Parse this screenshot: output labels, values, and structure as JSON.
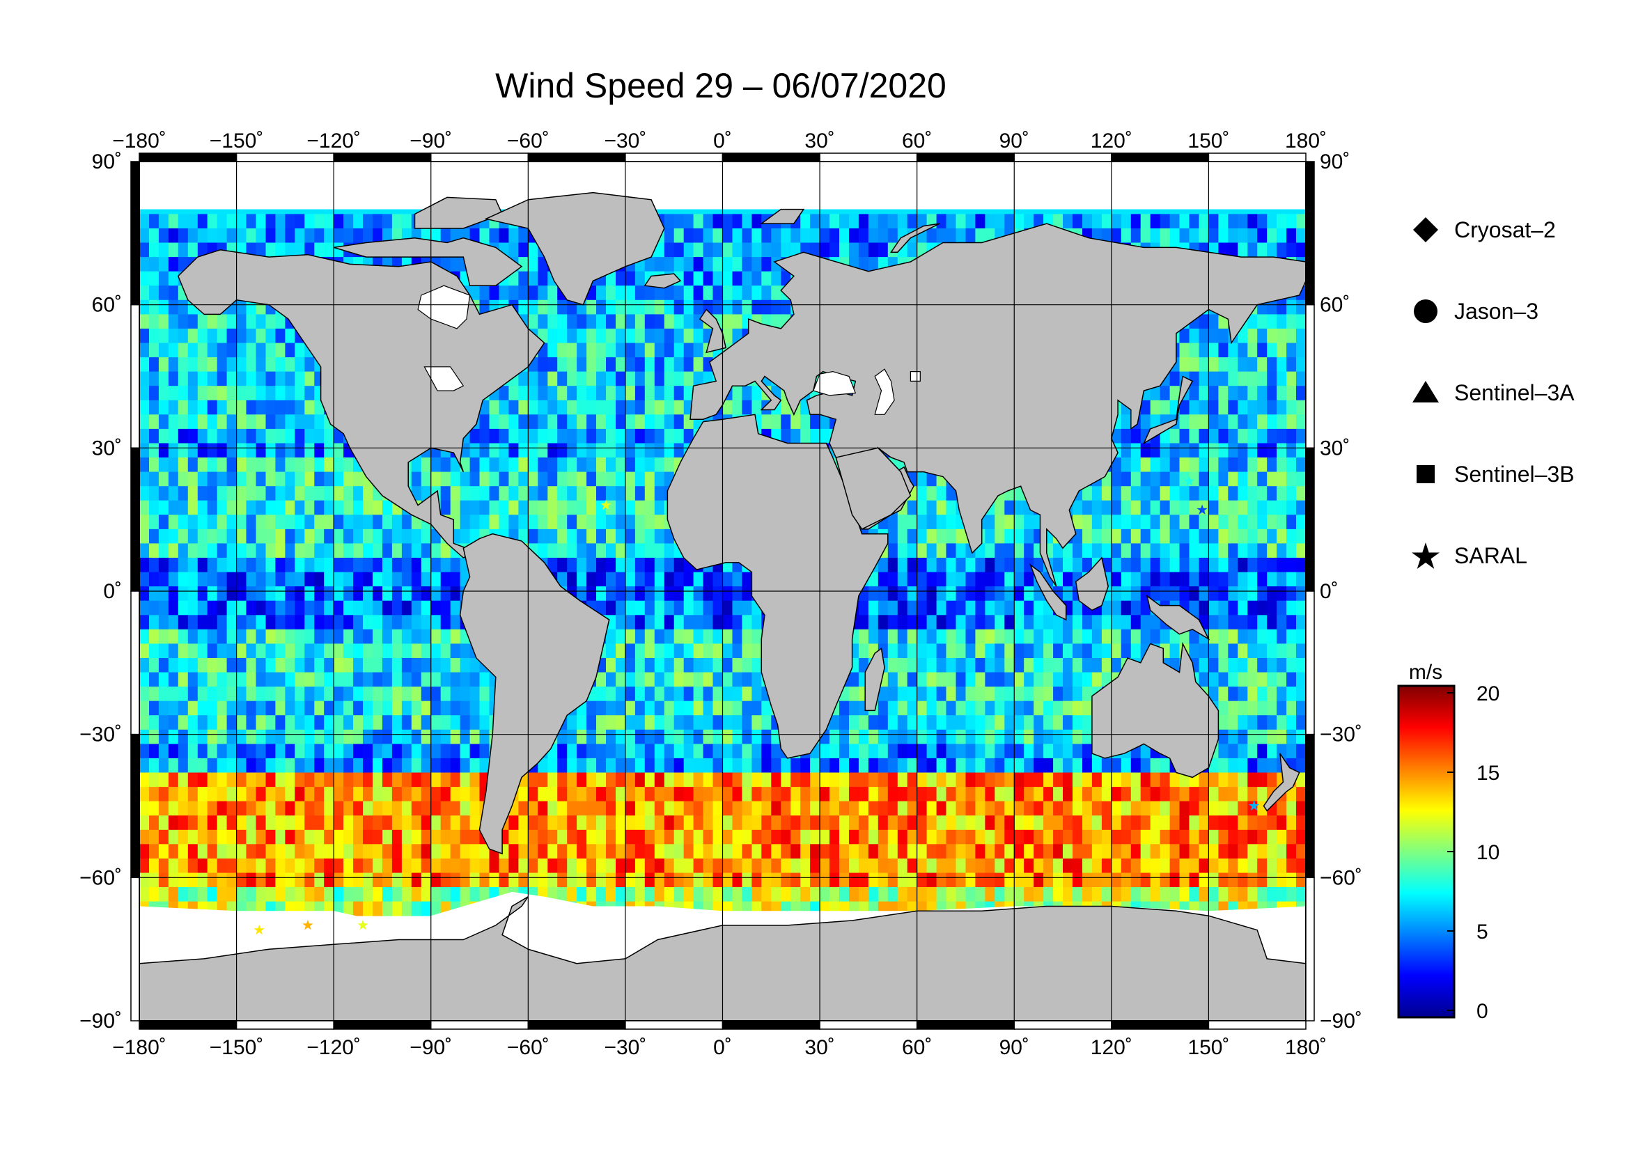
{
  "title": "Wind Speed 29 – 06/07/2020",
  "axes": {
    "lon_ticks": [
      {
        "value": -180,
        "label": "−180˚"
      },
      {
        "value": -150,
        "label": "−150˚"
      },
      {
        "value": -120,
        "label": "−120˚"
      },
      {
        "value": -90,
        "label": "−90˚"
      },
      {
        "value": -60,
        "label": "−60˚"
      },
      {
        "value": -30,
        "label": "−30˚"
      },
      {
        "value": 0,
        "label": "0˚"
      },
      {
        "value": 30,
        "label": "30˚"
      },
      {
        "value": 60,
        "label": "60˚"
      },
      {
        "value": 90,
        "label": "90˚"
      },
      {
        "value": 120,
        "label": "120˚"
      },
      {
        "value": 150,
        "label": "150˚"
      },
      {
        "value": 180,
        "label": "180˚"
      }
    ],
    "lat_ticks": [
      {
        "value": 90,
        "label": "90˚"
      },
      {
        "value": 60,
        "label": "60˚"
      },
      {
        "value": 30,
        "label": "30˚"
      },
      {
        "value": 0,
        "label": "0˚"
      },
      {
        "value": -30,
        "label": "−30˚"
      },
      {
        "value": -60,
        "label": "−60˚"
      },
      {
        "value": -90,
        "label": "−90˚"
      }
    ]
  },
  "legend": [
    {
      "label": "Cryosat–2",
      "symbol": "diamond"
    },
    {
      "label": "Jason–3",
      "symbol": "circle"
    },
    {
      "label": "Sentinel–3A",
      "symbol": "triangle"
    },
    {
      "label": "Sentinel–3B",
      "symbol": "square"
    },
    {
      "label": "SARAL",
      "symbol": "star"
    }
  ],
  "colorbar": {
    "unit": "m/s",
    "min": 0,
    "max": 20,
    "ticks": [
      {
        "value": 20,
        "label": "20"
      },
      {
        "value": 15,
        "label": "15"
      },
      {
        "value": 10,
        "label": "10"
      },
      {
        "value": 5,
        "label": "5"
      },
      {
        "value": 0,
        "label": "0"
      }
    ],
    "colors": [
      "#00008f",
      "#0000ff",
      "#0080ff",
      "#00ffff",
      "#80ff80",
      "#ffff00",
      "#ff8000",
      "#ff0000",
      "#800000"
    ]
  },
  "colors": {
    "land": "#bebebe",
    "ice": "#ffffff",
    "grid": "#000000"
  }
}
